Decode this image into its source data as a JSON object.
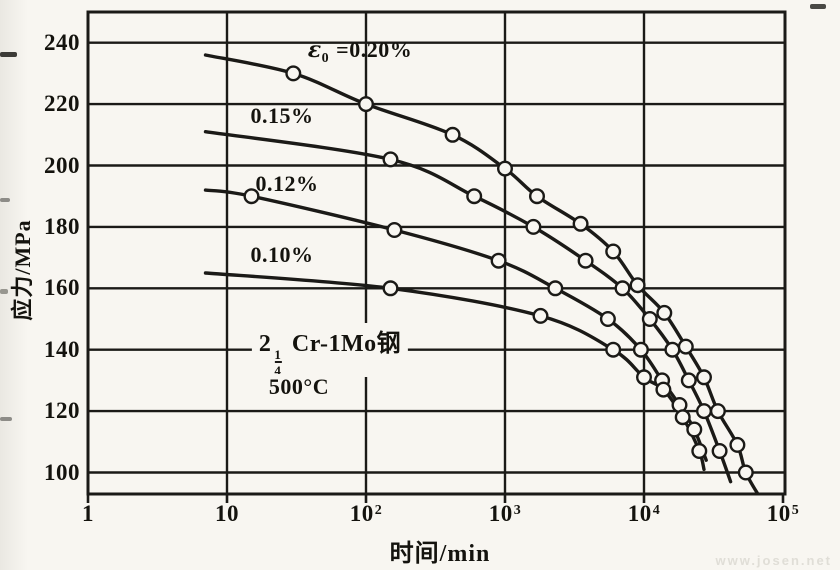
{
  "page": {
    "background": "#f8f6f1",
    "ink": "#1b1a17",
    "watermark": "www.josen.net"
  },
  "chart_data": {
    "type": "line",
    "title": "",
    "xlabel": "时间/min",
    "ylabel": "应力/MPa",
    "x_scale": "log",
    "grid": true,
    "legend_position": "inline-curve-labels",
    "xlim": [
      1,
      100000
    ],
    "ylim": [
      93,
      250
    ],
    "y_ticks": [
      100,
      120,
      140,
      160,
      180,
      200,
      220,
      240
    ],
    "x_ticks": [
      {
        "value": 1,
        "base": "1",
        "exp": ""
      },
      {
        "value": 10,
        "base": "10",
        "exp": ""
      },
      {
        "value": 100,
        "base": "10",
        "exp": "2"
      },
      {
        "value": 1000,
        "base": "10",
        "exp": "3"
      },
      {
        "value": 10000,
        "base": "10",
        "exp": "4"
      },
      {
        "value": 100000,
        "base": "10",
        "exp": "5"
      }
    ],
    "series": [
      {
        "name": "strain-0.20",
        "label_pre": "ε",
        "label_sub": "0",
        "label_text": "=0.20%",
        "label_anchor": [
          90,
          237
        ],
        "line_start": [
          7,
          236
        ],
        "points": [
          [
            30,
            230
          ],
          [
            100,
            220
          ],
          [
            420,
            210
          ],
          [
            1000,
            199
          ],
          [
            1700,
            190
          ],
          [
            3500,
            181
          ],
          [
            6000,
            172
          ],
          [
            9000,
            161
          ],
          [
            14000,
            152
          ],
          [
            20000,
            141
          ],
          [
            27000,
            131
          ],
          [
            34000,
            120
          ],
          [
            47000,
            109
          ],
          [
            54000,
            100
          ]
        ],
        "line_end": [
          68000,
          92
        ]
      },
      {
        "name": "strain-0.15",
        "label_pre": "",
        "label_sub": "",
        "label_text": "0.15%",
        "label_anchor": [
          25,
          216
        ],
        "line_start": [
          7,
          211
        ],
        "points": [
          [
            150,
            202
          ],
          [
            600,
            190
          ],
          [
            1600,
            180
          ],
          [
            3800,
            169
          ],
          [
            7000,
            160
          ],
          [
            11000,
            150
          ],
          [
            16000,
            140
          ],
          [
            21000,
            130
          ],
          [
            27000,
            120
          ],
          [
            35000,
            107
          ]
        ],
        "line_end": [
          42000,
          97
        ]
      },
      {
        "name": "strain-0.12",
        "label_pre": "",
        "label_sub": "",
        "label_text": "0.12%",
        "label_anchor": [
          27,
          194
        ],
        "line_start": [
          7,
          192
        ],
        "points": [
          [
            15,
            190
          ],
          [
            160,
            179
          ],
          [
            900,
            169
          ],
          [
            2300,
            160
          ],
          [
            5500,
            150
          ],
          [
            9500,
            140
          ],
          [
            13500,
            130
          ],
          [
            18000,
            122
          ],
          [
            23000,
            114
          ]
        ],
        "line_end": [
          28000,
          104
        ]
      },
      {
        "name": "strain-0.10",
        "label_pre": "",
        "label_sub": "",
        "label_text": "0.10%",
        "label_anchor": [
          25,
          171
        ],
        "line_start": [
          7,
          165
        ],
        "points": [
          [
            150,
            160
          ],
          [
            1800,
            151
          ],
          [
            6000,
            140
          ],
          [
            10000,
            131
          ],
          [
            13800,
            127
          ],
          [
            19000,
            118
          ],
          [
            25000,
            107
          ]
        ],
        "line_end": [
          27000,
          101
        ]
      }
    ],
    "annotations": [
      {
        "name": "alloy-label",
        "prefix": "2",
        "frac_num": "1",
        "frac_den": "4",
        "suffix": "Cr-1Mo钢",
        "anchor": [
          55,
          140
        ]
      },
      {
        "name": "temperature-label",
        "value": "500",
        "unit": "°C",
        "anchor": [
          33,
          128
        ]
      }
    ]
  }
}
